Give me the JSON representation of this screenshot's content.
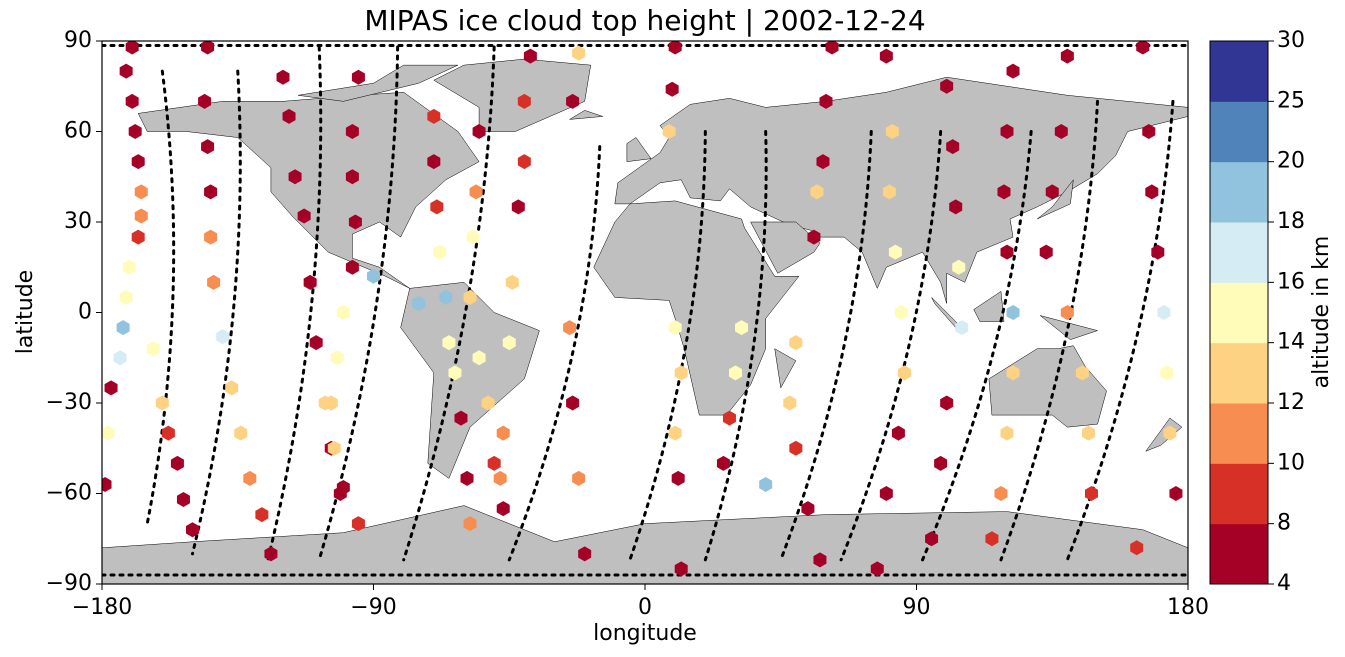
{
  "chart_data": {
    "type": "scatter",
    "title": "MIPAS ice cloud top height | 2002-12-24",
    "xlabel": "longitude",
    "ylabel": "latitude",
    "xlim": [
      -180,
      180
    ],
    "ylim": [
      -90,
      90
    ],
    "xticks": [
      {
        "value": -180,
        "label": "−180"
      },
      {
        "value": -90,
        "label": "−90"
      },
      0,
      90,
      180
    ],
    "yticks": [
      {
        "value": -90,
        "label": "−90"
      },
      {
        "value": -60,
        "label": "−60"
      },
      {
        "value": -30,
        "label": "−30"
      },
      0,
      30,
      60,
      90
    ],
    "colorbar": {
      "label": "altitude in km",
      "ticks": [
        4,
        8,
        10,
        12,
        14,
        16,
        18,
        20,
        25,
        30
      ],
      "colors": [
        "#a50026",
        "#d73027",
        "#f88d52",
        "#fdd283",
        "#fffbb9",
        "#d6ecf4",
        "#91c2de",
        "#5183bb",
        "#313695"
      ]
    },
    "x": [
      -170,
      -172,
      -170,
      -169,
      -168,
      -167,
      -167,
      -168,
      -171,
      -172,
      -173,
      -174,
      -177,
      -178,
      -179,
      -163,
      -160,
      -158,
      -155,
      -153,
      -150,
      -145,
      -146,
      -145,
      -144,
      -144,
      -143,
      -140,
      -137,
      -134,
      -131,
      -127,
      -124,
      -120,
      -118,
      -116,
      -113,
      -111,
      -109,
      -106,
      -104,
      -100,
      -95,
      -95,
      -97,
      -97,
      -96,
      -97,
      -100,
      -102,
      -104,
      -103,
      -101,
      -70,
      -70,
      -69,
      -68,
      -66,
      -65,
      -63,
      -61,
      -59,
      -58,
      -55,
      -56,
      -57,
      -58,
      -55,
      -52,
      -50,
      -47,
      -38,
      -40,
      -40,
      -42,
      -44,
      -45,
      -47,
      -48,
      -22,
      -24,
      -25,
      -24,
      -22,
      -20,
      10,
      9,
      8,
      10,
      12,
      10,
      11,
      12,
      32,
      30,
      28,
      26,
      50,
      48,
      50,
      54,
      58,
      62,
      60,
      59,
      57,
      56,
      80,
      82,
      81,
      83,
      85,
      86,
      84,
      80,
      77,
      100,
      102,
      103,
      104,
      105,
      100,
      98,
      95,
      122,
      120,
      119,
      120,
      122,
      122,
      120,
      118,
      115,
      140,
      138,
      135,
      133,
      140,
      145,
      147,
      148,
      165,
      167,
      168,
      170,
      172,
      173,
      174,
      176,
      163,
      -75,
      -90,
      40
    ],
    "y": [
      88,
      80,
      70,
      60,
      50,
      40,
      32,
      25,
      15,
      5,
      -5,
      -15,
      -25,
      -40,
      -57,
      -12,
      -30,
      -40,
      -50,
      -62,
      -72,
      88,
      70,
      55,
      40,
      25,
      10,
      -8,
      -25,
      -40,
      -55,
      -67,
      -80,
      78,
      65,
      45,
      32,
      10,
      -10,
      -30,
      -45,
      -58,
      -70,
      78,
      60,
      45,
      30,
      15,
      0,
      -15,
      -30,
      -45,
      -60,
      65,
      50,
      35,
      20,
      5,
      -10,
      -20,
      -35,
      -55,
      -70,
      60,
      40,
      25,
      5,
      -15,
      -30,
      -50,
      -65,
      85,
      70,
      50,
      35,
      10,
      -10,
      -40,
      -55,
      86,
      70,
      -5,
      -30,
      -55,
      -80,
      88,
      74,
      60,
      -5,
      -20,
      -40,
      -55,
      -85,
      -5,
      -20,
      -35,
      -50,
      -10,
      -30,
      -45,
      -65,
      -82,
      88,
      70,
      50,
      40,
      25,
      85,
      60,
      40,
      20,
      0,
      -20,
      -40,
      -60,
      -85,
      75,
      55,
      35,
      15,
      -5,
      -30,
      -50,
      -75,
      80,
      60,
      40,
      20,
      0,
      -20,
      -40,
      -60,
      -75,
      85,
      60,
      40,
      20,
      0,
      -20,
      -40,
      -60,
      88,
      60,
      40,
      20,
      0,
      -20,
      -40,
      -60,
      -78,
      3,
      12,
      -57
    ],
    "values": [
      6,
      6,
      6,
      6,
      6,
      10,
      11,
      8,
      15,
      14,
      18,
      17,
      6,
      14,
      6,
      15,
      13,
      8,
      6,
      6,
      6,
      6,
      6,
      6,
      6,
      11,
      11,
      17,
      12,
      13,
      10,
      8,
      6,
      6,
      6,
      6,
      6,
      6,
      6,
      13,
      6,
      6,
      8,
      6,
      6,
      6,
      6,
      6,
      14,
      14,
      13,
      13,
      6,
      8,
      6,
      8,
      14,
      18,
      15,
      14,
      6,
      6,
      10,
      6,
      10,
      14,
      13,
      15,
      13,
      8,
      6,
      6,
      8,
      8,
      6,
      13,
      14,
      10,
      11,
      12,
      6,
      10,
      6,
      11,
      6,
      6,
      6,
      13,
      15,
      13,
      13,
      6,
      6,
      14,
      14,
      8,
      6,
      13,
      12,
      8,
      6,
      6,
      6,
      6,
      6,
      12,
      6,
      6,
      13,
      13,
      14,
      15,
      13,
      6,
      6,
      6,
      6,
      6,
      6,
      14,
      16,
      6,
      6,
      6,
      6,
      6,
      6,
      6,
      18,
      13,
      13,
      10,
      8,
      6,
      6,
      6,
      6,
      11,
      12,
      13,
      8,
      6,
      6,
      6,
      6,
      17,
      14,
      13,
      6,
      8,
      18,
      18,
      18
    ]
  }
}
